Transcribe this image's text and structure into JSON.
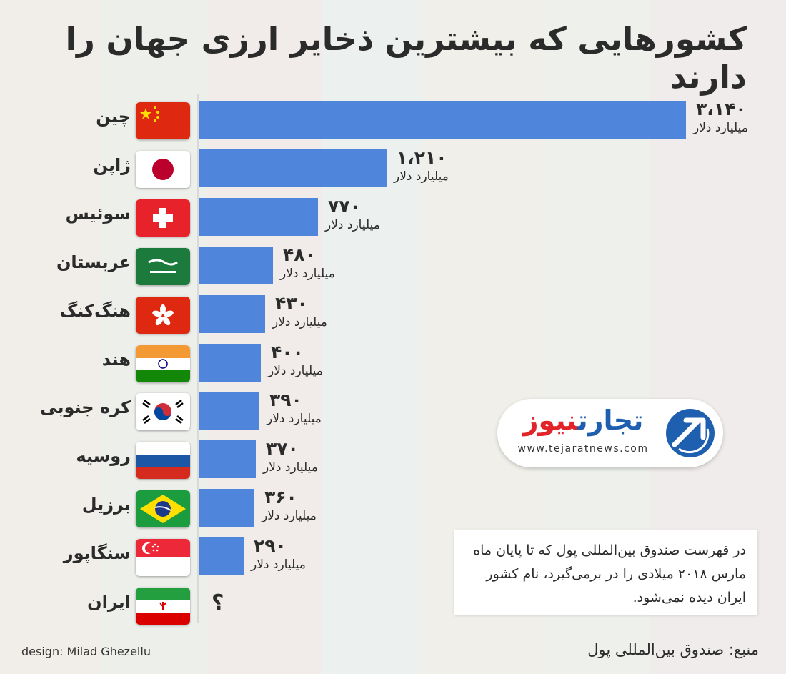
{
  "title": "کشورهایی که بیشترین ذخایر ارزی جهان را دارند",
  "colors": {
    "bar": "#4f86db",
    "text": "#2b2b2b"
  },
  "chart_data": {
    "type": "bar",
    "orientation": "horizontal",
    "title": "کشورهایی که بیشترین ذخایر ارزی جهان را دارند",
    "unit": "میلیارد دلار",
    "categories": [
      "چین",
      "ژاپن",
      "سوئیس",
      "عربستان",
      "هنگ‌کنگ",
      "هند",
      "کره جنوبی",
      "روسیه",
      "برزیل",
      "سنگاپور",
      "ایران"
    ],
    "values": [
      3140,
      1210,
      770,
      480,
      430,
      400,
      390,
      370,
      360,
      290,
      null
    ],
    "value_labels": [
      "۳،۱۴۰",
      "۱،۲۱۰",
      "۷۷۰",
      "۴۸۰",
      "۴۳۰",
      "۴۰۰",
      "۳۹۰",
      "۳۷۰",
      "۳۶۰",
      "۲۹۰",
      "؟"
    ],
    "flags": [
      "china-flag",
      "japan-flag",
      "switzerland-flag",
      "saudi-arabia-flag",
      "hong-kong-flag",
      "india-flag",
      "south-korea-flag",
      "russia-flag",
      "brazil-flag",
      "singapore-flag",
      "iran-flag"
    ],
    "xlim": [
      0,
      3140
    ],
    "grid": false,
    "legend": "none"
  },
  "logo": {
    "brand_part1": "تجارت",
    "brand_part2": "نیوز",
    "url": "www.tejaratnews.com",
    "icon": "tejarat-arrow-logo-icon"
  },
  "note": "در فهرست صندوق بین‌المللی پول که تا پایان ماه مارس ۲۰۱۸ میلادی را در برمی‌گیرد، نام کشور ایران دیده نمی‌شود.",
  "design_credit": "design: Milad Ghezellu",
  "source": "منبع: صندوق بین‌المللی پول"
}
